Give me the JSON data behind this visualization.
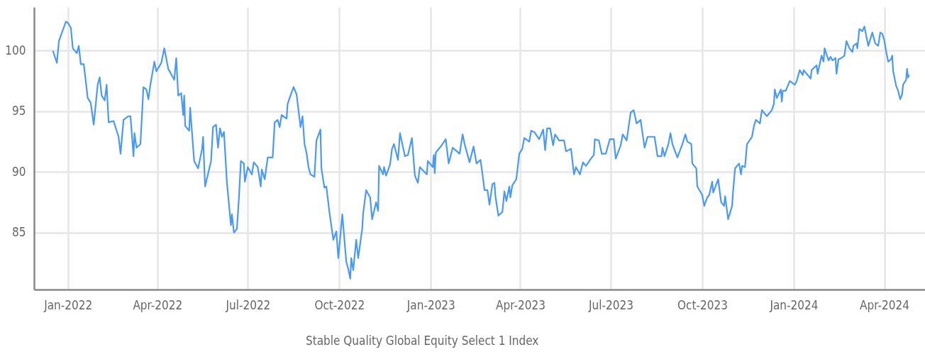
{
  "chart_data": {
    "type": "line",
    "legend": "bottom",
    "grid": true,
    "marker": "none",
    "line_style": "solid",
    "xlim": [
      "2021-11-28",
      "2024-05-12"
    ],
    "ylim": [
      80.3,
      103.6
    ],
    "yticks": [
      85,
      90,
      95,
      100
    ],
    "xticks": [
      {
        "value": "2022-01-01",
        "label": "Jan-2022"
      },
      {
        "value": "2022-04-01",
        "label": "Apr-2022"
      },
      {
        "value": "2022-07-01",
        "label": "Jul-2022"
      },
      {
        "value": "2022-10-01",
        "label": "Oct-2022"
      },
      {
        "value": "2023-01-01",
        "label": "Jan-2023"
      },
      {
        "value": "2023-04-01",
        "label": "Apr-2023"
      },
      {
        "value": "2023-07-01",
        "label": "Jul-2023"
      },
      {
        "value": "2023-10-01",
        "label": "Oct-2023"
      },
      {
        "value": "2024-01-01",
        "label": "Jan-2024"
      },
      {
        "value": "2024-04-01",
        "label": "Apr-2024"
      }
    ],
    "x": [
      "2021-12-17",
      "2021-12-21",
      "2021-12-23",
      "2021-12-30",
      "2022-01-01",
      "2022-01-04",
      "2022-01-06",
      "2022-01-10",
      "2022-01-12",
      "2022-01-14",
      "2022-01-17",
      "2022-01-21",
      "2022-01-24",
      "2022-01-27",
      "2022-01-31",
      "2022-02-02",
      "2022-02-04",
      "2022-02-07",
      "2022-02-09",
      "2022-02-11",
      "2022-02-16",
      "2022-02-21",
      "2022-02-23",
      "2022-02-26",
      "2022-03-03",
      "2022-03-05",
      "2022-03-08",
      "2022-03-09",
      "2022-03-11",
      "2022-03-15",
      "2022-03-18",
      "2022-03-21",
      "2022-03-23",
      "2022-03-25",
      "2022-03-29",
      "2022-03-31",
      "2022-04-05",
      "2022-04-08",
      "2022-04-12",
      "2022-04-18",
      "2022-04-20",
      "2022-04-22",
      "2022-04-25",
      "2022-04-27",
      "2022-04-28",
      "2022-04-29",
      "2022-05-03",
      "2022-05-04",
      "2022-05-08",
      "2022-05-12",
      "2022-05-16",
      "2022-05-17",
      "2022-05-19",
      "2022-05-25",
      "2022-05-27",
      "2022-05-30",
      "2022-06-01",
      "2022-06-03",
      "2022-06-05",
      "2022-06-07",
      "2022-06-10",
      "2022-06-14",
      "2022-06-15",
      "2022-06-17",
      "2022-06-20",
      "2022-06-22",
      "2022-06-24",
      "2022-06-27",
      "2022-06-28",
      "2022-07-01",
      "2022-07-05",
      "2022-07-07",
      "2022-07-11",
      "2022-07-14",
      "2022-07-15",
      "2022-07-18",
      "2022-07-21",
      "2022-07-26",
      "2022-07-28",
      "2022-07-31",
      "2022-08-02",
      "2022-08-04",
      "2022-08-09",
      "2022-08-10",
      "2022-08-12",
      "2022-08-16",
      "2022-08-19",
      "2022-08-23",
      "2022-08-25",
      "2022-08-27",
      "2022-08-29",
      "2022-08-31",
      "2022-09-02",
      "2022-09-06",
      "2022-09-08",
      "2022-09-12",
      "2022-09-13",
      "2022-09-16",
      "2022-09-18",
      "2022-09-21",
      "2022-09-25",
      "2022-09-28",
      "2022-09-30",
      "2022-10-04",
      "2022-10-08",
      "2022-10-10",
      "2022-10-12",
      "2022-10-13",
      "2022-10-15",
      "2022-10-18",
      "2022-10-20",
      "2022-10-24",
      "2022-10-25",
      "2022-10-28",
      "2022-11-01",
      "2022-11-03",
      "2022-11-07",
      "2022-11-09",
      "2022-11-10",
      "2022-11-14",
      "2022-11-15",
      "2022-11-17",
      "2022-11-21",
      "2022-11-23",
      "2022-11-25",
      "2022-11-29",
      "2022-12-01",
      "2022-12-06",
      "2022-12-09",
      "2022-12-13",
      "2022-12-16",
      "2022-12-19",
      "2022-12-21",
      "2022-12-28",
      "2022-12-29",
      "2023-01-03",
      "2023-01-04",
      "2023-01-05",
      "2023-01-06",
      "2023-01-12",
      "2023-01-16",
      "2023-01-19",
      "2023-01-23",
      "2023-01-30",
      "2023-02-02",
      "2023-02-04",
      "2023-02-09",
      "2023-02-13",
      "2023-02-16",
      "2023-02-20",
      "2023-02-22",
      "2023-02-24",
      "2023-02-27",
      "2023-03-01",
      "2023-03-04",
      "2023-03-06",
      "2023-03-07",
      "2023-03-10",
      "2023-03-14",
      "2023-03-16",
      "2023-03-18",
      "2023-03-21",
      "2023-03-22",
      "2023-03-24",
      "2023-03-28",
      "2023-03-31",
      "2023-04-03",
      "2023-04-05",
      "2023-04-10",
      "2023-04-12",
      "2023-04-15",
      "2023-04-20",
      "2023-04-24",
      "2023-04-26",
      "2023-04-28",
      "2023-05-01",
      "2023-05-04",
      "2023-05-06",
      "2023-05-10",
      "2023-05-15",
      "2023-05-17",
      "2023-05-22",
      "2023-05-25",
      "2023-05-27",
      "2023-05-31",
      "2023-06-03",
      "2023-06-06",
      "2023-06-11",
      "2023-06-14",
      "2023-06-15",
      "2023-06-19",
      "2023-06-22",
      "2023-06-26",
      "2023-06-30",
      "2023-07-04",
      "2023-07-06",
      "2023-07-11",
      "2023-07-13",
      "2023-07-17",
      "2023-07-21",
      "2023-07-24",
      "2023-07-27",
      "2023-07-31",
      "2023-08-04",
      "2023-08-07",
      "2023-08-14",
      "2023-08-17",
      "2023-08-21",
      "2023-08-22",
      "2023-08-24",
      "2023-08-28",
      "2023-08-30",
      "2023-09-01",
      "2023-09-06",
      "2023-09-11",
      "2023-09-14",
      "2023-09-16",
      "2023-09-20",
      "2023-09-21",
      "2023-09-25",
      "2023-09-26",
      "2023-10-01",
      "2023-10-03",
      "2023-10-06",
      "2023-10-08",
      "2023-10-11",
      "2023-10-12",
      "2023-10-17",
      "2023-10-20",
      "2023-10-23",
      "2023-10-24",
      "2023-10-27",
      "2023-10-31",
      "2023-11-01",
      "2023-11-03",
      "2023-11-07",
      "2023-11-09",
      "2023-11-10",
      "2023-11-13",
      "2023-11-15",
      "2023-11-20",
      "2023-11-22",
      "2023-11-24",
      "2023-11-28",
      "2023-11-30",
      "2023-12-05",
      "2023-12-10",
      "2023-12-12",
      "2023-12-13",
      "2023-12-15",
      "2023-12-19",
      "2023-12-20",
      "2023-12-21",
      "2023-12-24",
      "2023-12-28",
      "2024-01-02",
      "2024-01-04",
      "2024-01-07",
      "2024-01-10",
      "2024-01-11",
      "2024-01-18",
      "2024-01-19",
      "2024-01-24",
      "2024-01-25",
      "2024-01-29",
      "2024-01-31",
      "2024-02-01",
      "2024-02-05",
      "2024-02-07",
      "2024-02-09",
      "2024-02-12",
      "2024-02-13",
      "2024-02-15",
      "2024-02-18",
      "2024-02-21",
      "2024-02-23",
      "2024-02-26",
      "2024-02-29",
      "2024-03-01",
      "2024-03-04",
      "2024-03-05",
      "2024-03-07",
      "2024-03-10",
      "2024-03-12",
      "2024-03-16",
      "2024-03-20",
      "2024-03-23",
      "2024-03-26",
      "2024-03-28",
      "2024-03-30",
      "2024-04-01",
      "2024-04-03",
      "2024-04-05",
      "2024-04-08",
      "2024-04-09",
      "2024-04-10",
      "2024-04-13",
      "2024-04-15",
      "2024-04-17",
      "2024-04-19",
      "2024-04-20",
      "2024-04-23",
      "2024-04-24",
      "2024-04-25",
      "2024-04-26"
    ],
    "series": [
      {
        "name": "Stable Quality Global Equity Select 1 Index",
        "color": "#4a9af5",
        "values": [
          100.0,
          99.0,
          100.8,
          102.4,
          102.3,
          101.9,
          100.2,
          99.8,
          100.4,
          98.9,
          98.9,
          96.1,
          95.7,
          93.9,
          97.2,
          97.8,
          96.3,
          95.9,
          97.2,
          94.1,
          94.2,
          92.9,
          91.5,
          94.3,
          94.6,
          94.6,
          91.3,
          93.2,
          92.0,
          92.3,
          97.0,
          96.8,
          96.0,
          97.2,
          99.1,
          98.3,
          99.0,
          100.2,
          98.5,
          97.6,
          99.4,
          96.3,
          96.5,
          94.7,
          96.3,
          93.8,
          93.4,
          95.3,
          90.9,
          90.3,
          91.9,
          92.9,
          88.8,
          90.9,
          93.7,
          93.9,
          92.0,
          93.6,
          92.9,
          93.3,
          89.1,
          85.6,
          86.5,
          85.0,
          85.3,
          87.8,
          90.9,
          90.7,
          89.2,
          90.4,
          89.8,
          90.8,
          90.4,
          88.8,
          90.2,
          89.4,
          91.2,
          91.2,
          94.1,
          94.3,
          93.7,
          94.7,
          94.4,
          95.6,
          96.1,
          97.0,
          96.4,
          93.7,
          94.6,
          92.3,
          91.6,
          90.4,
          89.8,
          89.6,
          92.6,
          93.5,
          90.3,
          88.7,
          88.8,
          86.7,
          84.4,
          85.1,
          82.9,
          86.5,
          82.6,
          82.0,
          81.2,
          82.9,
          81.9,
          84.4,
          82.9,
          85.3,
          86.6,
          88.5,
          87.9,
          86.1,
          87.5,
          86.8,
          90.5,
          89.8,
          90.4,
          89.7,
          90.6,
          91.9,
          92.3,
          91.0,
          93.2,
          91.3,
          91.4,
          92.8,
          89.7,
          89.1,
          90.4,
          89.8,
          90.9,
          90.4,
          91.4,
          89.9,
          91.6,
          92.2,
          92.7,
          90.7,
          92.0,
          91.5,
          93.1,
          92.3,
          90.8,
          92.1,
          90.7,
          91.0,
          89.8,
          88.5,
          88.5,
          87.3,
          89.0,
          89.1,
          88.0,
          86.4,
          86.7,
          88.4,
          87.6,
          88.8,
          87.9,
          88.9,
          89.4,
          91.5,
          91.9,
          92.8,
          92.5,
          93.4,
          93.3,
          92.7,
          93.5,
          91.8,
          93.6,
          93.6,
          92.2,
          93.1,
          92.6,
          92.6,
          91.7,
          91.9,
          89.8,
          90.4,
          89.8,
          90.8,
          90.5,
          91.1,
          91.4,
          92.7,
          92.6,
          91.5,
          91.5,
          92.7,
          92.7,
          91.1,
          92.2,
          93.1,
          92.6,
          94.9,
          95.1,
          94.0,
          94.3,
          92.0,
          92.9,
          92.9,
          91.3,
          91.3,
          92.0,
          91.3,
          92.3,
          93.2,
          92.3,
          91.2,
          92.3,
          93.1,
          92.5,
          92.3,
          90.7,
          90.3,
          88.8,
          88.1,
          87.2,
          87.9,
          88.1,
          89.2,
          88.3,
          89.4,
          87.5,
          87.2,
          88.0,
          86.1,
          87.2,
          88.4,
          90.3,
          90.7,
          89.8,
          90.5,
          90.4,
          92.3,
          92.9,
          93.8,
          94.3,
          94.0,
          95.1,
          94.6,
          95.1,
          95.6,
          96.8,
          96.1,
          96.8,
          95.8,
          96.7,
          96.7,
          97.5,
          97.2,
          97.5,
          98.4,
          98.0,
          98.4,
          97.7,
          98.4,
          98.8,
          98.1,
          99.6,
          99.1,
          100.2,
          99.2,
          99.5,
          99.2,
          99.4,
          98.1,
          99.3,
          99.4,
          99.6,
          100.8,
          100.2,
          99.9,
          100.4,
          100.6,
          100.2,
          101.8,
          101.6,
          102.0,
          100.4,
          101.5,
          100.6,
          100.4,
          101.5,
          101.4,
          100.9,
          99.9,
          99.1,
          99.3,
          99.6,
          98.3,
          97.1,
          96.7,
          96.0,
          96.4,
          97.2,
          97.6,
          98.5,
          97.8,
          98.0
        ]
      }
    ]
  }
}
